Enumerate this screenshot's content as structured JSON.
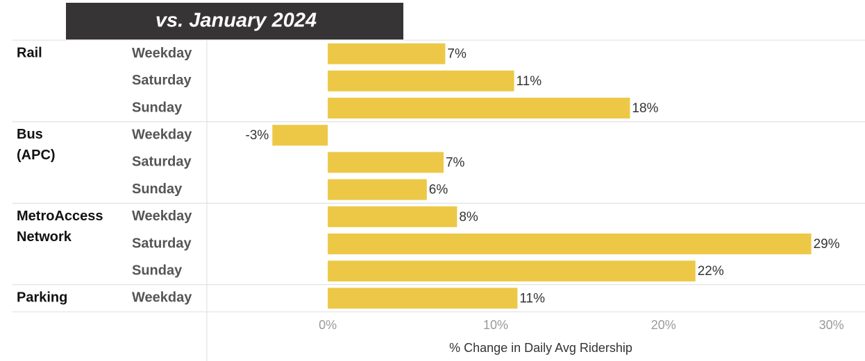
{
  "chart_data": {
    "type": "bar",
    "title": "vs. January 2024",
    "x_label": "% Change in Daily Avg Ridership",
    "color": "#ecc846",
    "grid": false,
    "xlim": [
      -7.2,
      32
    ],
    "xticks": [
      {
        "value": 0,
        "label": "0%"
      },
      {
        "value": 10,
        "label": "10%"
      },
      {
        "value": 20,
        "label": "20%"
      },
      {
        "value": 30,
        "label": "30%"
      }
    ],
    "groups": [
      {
        "name": "Rail",
        "categories": [
          "Weekday",
          "Saturday",
          "Sunday"
        ],
        "values": [
          7,
          11.1,
          18
        ],
        "value_labels": [
          "7%",
          "11%",
          "18%"
        ]
      },
      {
        "name": "Bus (APC)",
        "categories": [
          "Weekday",
          "Saturday",
          "Sunday"
        ],
        "values": [
          -3.3,
          6.9,
          5.9
        ],
        "value_labels": [
          "-3%",
          "7%",
          "6%"
        ]
      },
      {
        "name": "MetroAccess Network",
        "categories": [
          "Weekday",
          "Saturday",
          "Sunday"
        ],
        "values": [
          7.7,
          28.8,
          21.9
        ],
        "value_labels": [
          "8%",
          "29%",
          "22%"
        ]
      },
      {
        "name": "Parking",
        "categories": [
          "Weekday"
        ],
        "values": [
          11.3
        ],
        "value_labels": [
          "11%"
        ]
      }
    ]
  }
}
